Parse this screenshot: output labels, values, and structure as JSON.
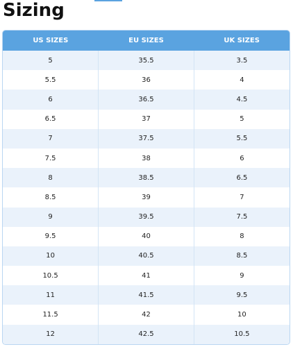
{
  "header": {
    "title": "Sizing"
  },
  "table": {
    "columns": [
      "US SIZES",
      "EU SIZES",
      "UK SIZES"
    ],
    "rows": [
      [
        "5",
        "35.5",
        "3.5"
      ],
      [
        "5.5",
        "36",
        "4"
      ],
      [
        "6",
        "36.5",
        "4.5"
      ],
      [
        "6.5",
        "37",
        "5"
      ],
      [
        "7",
        "37.5",
        "5.5"
      ],
      [
        "7.5",
        "38",
        "6"
      ],
      [
        "8",
        "38.5",
        "6.5"
      ],
      [
        "8.5",
        "39",
        "7"
      ],
      [
        "9",
        "39.5",
        "7.5"
      ],
      [
        "9.5",
        "40",
        "8"
      ],
      [
        "10",
        "40.5",
        "8.5"
      ],
      [
        "10.5",
        "41",
        "9"
      ],
      [
        "11",
        "41.5",
        "9.5"
      ],
      [
        "11.5",
        "42",
        "10"
      ],
      [
        "12",
        "42.5",
        "10.5"
      ]
    ]
  }
}
